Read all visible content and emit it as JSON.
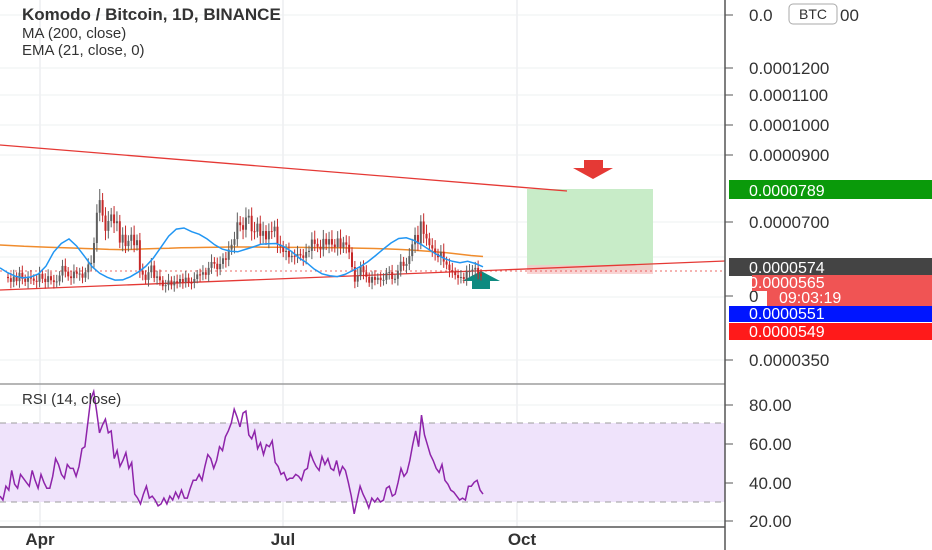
{
  "legend": {
    "symbol": "Komodo / Bitcoin, 1D, BINANCE",
    "ma": "MA (200, close)",
    "ema": "EMA (21, close, 0)"
  },
  "currency_badge": "BTC",
  "rsi_label": "RSI (14, close)",
  "colors": {
    "up": "#26a69a",
    "down": "#ef5350",
    "candle_up": "#5f5f5f",
    "candle_down": "#c62828",
    "ma": "#f08c2d",
    "ema": "#2196f3",
    "rsi": "#8e24aa",
    "trendline": "#e53935",
    "target_zone": "#c8ecc8",
    "rsi_band": "#efe3fb",
    "tag_green": "#0a9a0a",
    "tag_dark": "#444444",
    "tag_red": "#f05454",
    "tag_blue": "#0015ff",
    "tag_bright_red": "#ff1a1a"
  },
  "chart_data": [
    {
      "type": "candlestick",
      "title": "Komodo / Bitcoin, 1D, BINANCE",
      "x_axis": {
        "ticks": [
          "Apr",
          "Jul",
          "Oct"
        ]
      },
      "y_axis": {
        "ticks": [
          "0.0001200",
          "0.0001100",
          "0.0001000",
          "0.0000900",
          "0.0000700",
          "0.0000350"
        ],
        "partial_labels": [
          "0.0",
          "00",
          "0"
        ],
        "range": [
          3.5e-05,
          0.00013
        ]
      },
      "grid": true,
      "series": [
        {
          "name": "Komodo / Bitcoin",
          "kind": "ohlc",
          "close": [
            5.65e-05,
            5.48e-05,
            5.72e-05,
            5.51e-05,
            5.9e-05,
            5.62e-05,
            5.48e-05,
            5.71e-05,
            5.63e-05,
            5.53e-05,
            5.48e-05,
            5.85e-05,
            5.62e-05,
            5.47e-05,
            5.74e-05,
            5.55e-05,
            5.47e-05,
            5.5e-05,
            5.77e-05,
            6.21e-05,
            5.95e-05,
            5.73e-05,
            5.65e-05,
            5.95e-05,
            5.85e-05,
            5.86e-05,
            5.67e-05,
            5.92e-05,
            6.28e-05,
            6.35e-05,
            7.26e-05,
            8.65e-05,
            9.23e-05,
            8.52e-05,
            7.82e-05,
            8.27e-05,
            8.57e-05,
            8.17e-05,
            8.26e-05,
            7.28e-05,
            7.64e-05,
            7.12e-05,
            7.36e-05,
            7.64e-05,
            7.16e-05,
            7.39e-05,
            5.99e-05,
            5.81e-05,
            5.57e-05,
            5.92e-05,
            6.23e-05,
            5.66e-05,
            5.73e-05,
            5.55e-05,
            5.28e-05,
            5.33e-05,
            5.54e-05,
            5.32e-05,
            5.51e-05,
            5.42e-05,
            5.61e-05,
            5.46e-05,
            5.67e-05,
            5.44e-05,
            5.43e-05,
            5.61e-05,
            5.82e-05,
            5.81e-05,
            5.92e-05,
            5.8e-05,
            6.12e-05,
            6.39e-05,
            6.31e-05,
            6.06e-05,
            6.3e-05,
            6.56e-05,
            6.49e-05,
            6.96e-05,
            7.18e-05,
            7.44e-05,
            8.21e-05,
            8.08e-05,
            7.87e-05,
            8.43e-05,
            8.51e-05,
            7.8e-05,
            7.78e-05,
            8.15e-05,
            7.59e-05,
            7.81e-05,
            7.43e-05,
            7.81e-05,
            7.8e-05,
            8.01e-05,
            7.2e-05,
            7.11e-05,
            6.85e-05,
            6.9e-05,
            6.61e-05,
            6.67e-05,
            6.64e-05,
            6.76e-05,
            6.69e-05,
            6.58e-05,
            6.85e-05,
            6.9e-05,
            7.42e-05,
            7.22e-05,
            7.09e-05,
            6.96e-05,
            7.45e-05,
            7.19e-05,
            7.44e-05,
            7.19e-05,
            7.07e-05,
            7.47e-05,
            7.05e-05,
            7.29e-05,
            7.18e-05,
            6.83e-05,
            6.16e-05,
            5.49e-05,
            5.76e-05,
            6.19e-05,
            5.92e-05,
            5.71e-05,
            5.44e-05,
            5.7e-05,
            5.57e-05,
            5.67e-05,
            5.56e-05,
            5.57e-05,
            5.91e-05,
            5.93e-05,
            5.61e-05,
            5.62e-05,
            5.99e-05,
            6.4e-05,
            6.21e-05,
            6.3e-05,
            6.66e-05,
            7.2e-05,
            7.63e-05,
            7.23e-05,
            8.25e-05,
            7.68e-05,
            7.47e-05,
            7.16e-05,
            7.01e-05,
            6.76e-05,
            6.61e-05,
            6.86e-05,
            6.41e-05,
            6.27e-05,
            6.02e-05,
            5.93e-05,
            5.79e-05,
            5.66e-05,
            5.7e-05,
            5.61e-05,
            5.96e-05,
            5.97e-05,
            6.04e-05,
            6.12e-05,
            5.86e-05,
            5.74e-05
          ]
        },
        {
          "name": "MA (200, close)",
          "kind": "line",
          "values": [
            7.17e-05,
            7.14e-05,
            7.11e-05,
            7.09e-05,
            7.07e-05,
            7.05e-05,
            7.03e-05,
            7.01e-05,
            6.99e-05,
            6.97e-05,
            6.96e-05,
            6.97e-05,
            6.99e-05,
            7.01e-05,
            7.02e-05,
            7.04e-05,
            7.05e-05,
            7.06e-05,
            7.07e-05,
            7.08e-05,
            7.08e-05,
            7.08e-05,
            7.07e-05,
            7.07e-05,
            7.06e-05,
            7.06e-05,
            7.05e-05,
            7.05e-05,
            7.04e-05,
            7.03e-05,
            7.02e-05,
            7.01e-05,
            6.99e-05,
            6.97e-05,
            6.94e-05,
            6.9e-05,
            6.86e-05,
            6.81e-05,
            6.75e-05,
            6.69e-05,
            6.64e-05
          ]
        },
        {
          "name": "EMA (21, close, 0)",
          "kind": "line",
          "values": [
            6.12e-05,
            5.9e-05,
            5.74e-05,
            5.66e-05,
            5.7e-05,
            5.84e-05,
            6.2e-05,
            6.85e-05,
            7.24e-05,
            7.45e-05,
            7.12e-05,
            6.66e-05,
            6.18e-05,
            5.87e-05,
            5.69e-05,
            5.56e-05,
            5.57e-05,
            5.71e-05,
            5.92e-05,
            6.19e-05,
            6.57e-05,
            7.07e-05,
            7.58e-05,
            7.9e-05,
            7.95e-05,
            7.78e-05,
            7.66e-05,
            7.45e-05,
            7.18e-05,
            6.98e-05,
            6.89e-05,
            6.86e-05,
            6.97e-05,
            7.08e-05,
            7.2e-05,
            7.23e-05,
            7.24e-05,
            7.1e-05,
            6.88e-05,
            6.58e-05,
            6.36e-05,
            6.06e-05,
            5.85e-05,
            5.76e-05,
            5.72e-05,
            5.82e-05,
            6e-05,
            6.18e-05,
            6.41e-05,
            6.69e-05,
            6.98e-05,
            7.26e-05,
            7.47e-05,
            7.5e-05,
            7.38e-05,
            7.18e-05,
            6.95e-05,
            6.73e-05,
            6.54e-05,
            6.42e-05,
            6.36e-05,
            6.42e-05,
            6.32e-05,
            6.17e-05
          ]
        }
      ],
      "price_tags": [
        "0.0000789",
        "0.0000574",
        "0.0000565",
        "09:03:19",
        "0.0000551",
        "0.0000549"
      ]
    },
    {
      "type": "line",
      "title": "RSI (14, close)",
      "x_axis": {
        "ticks": [
          "Apr",
          "Jul",
          "Oct"
        ]
      },
      "y_axis": {
        "ticks": [
          "80.00",
          "60.00",
          "40.00",
          "20.00"
        ],
        "range": [
          20,
          88
        ]
      },
      "band": [
        30,
        70
      ],
      "series": [
        {
          "name": "RSI (14, close)",
          "values": [
            33,
            31,
            38,
            36,
            46,
            39,
            37,
            44,
            42,
            40,
            38,
            46,
            41,
            37,
            44,
            40,
            37,
            37,
            43,
            52,
            49,
            44,
            42,
            49,
            47,
            47,
            43,
            48,
            57,
            58,
            70,
            82,
            86,
            76,
            65,
            69,
            72,
            65,
            66,
            52,
            56,
            48,
            51,
            55,
            47,
            50,
            34,
            32,
            29,
            34,
            38,
            32,
            33,
            31,
            28,
            29,
            32,
            29,
            33,
            31,
            35,
            32,
            36,
            32,
            32,
            37,
            41,
            41,
            44,
            41,
            48,
            54,
            52,
            47,
            51,
            58,
            56,
            63,
            66,
            70,
            77,
            73,
            68,
            75,
            76,
            64,
            62,
            66,
            57,
            60,
            54,
            59,
            58,
            61,
            50,
            48,
            44,
            45,
            41,
            42,
            42,
            44,
            43,
            41,
            46,
            47,
            55,
            51,
            48,
            46,
            53,
            49,
            52,
            47,
            46,
            51,
            44,
            48,
            46,
            40,
            33,
            24,
            31,
            38,
            34,
            31,
            27,
            32,
            30,
            32,
            30,
            31,
            37,
            38,
            33,
            34,
            40,
            47,
            43,
            45,
            51,
            59,
            66,
            58,
            74,
            64,
            59,
            54,
            51,
            47,
            45,
            49,
            41,
            39,
            36,
            35,
            33,
            31,
            32,
            31,
            38,
            38,
            40,
            41,
            36,
            34
          ]
        }
      ]
    }
  ]
}
